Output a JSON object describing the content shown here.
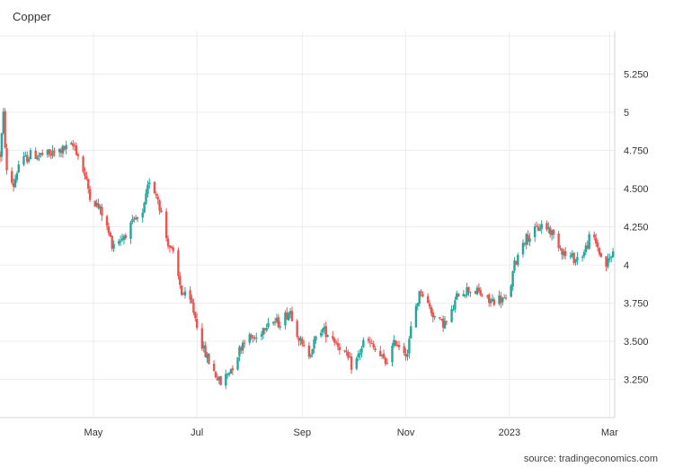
{
  "chart_data": {
    "type": "candlestick",
    "title": "Copper",
    "source": "source: tradingeconomics.com",
    "xlabel": "",
    "ylabel": "",
    "ylim": [
      3.0,
      5.5
    ],
    "y_ticks": [
      3.25,
      3.5,
      3.75,
      4,
      4.25,
      4.5,
      4.75,
      5,
      5.25
    ],
    "y_tick_labels": [
      "3.250",
      "3.500",
      "3.750",
      "4",
      "4.250",
      "4.500",
      "4.750",
      "5",
      "5.250"
    ],
    "x_start": "2022-03-07",
    "x_end": "2023-03-04",
    "x_ticks": [
      {
        "date": "2022-05-01",
        "label": "May"
      },
      {
        "date": "2022-07-01",
        "label": "Jul"
      },
      {
        "date": "2022-09-01",
        "label": "Sep"
      },
      {
        "date": "2022-11-01",
        "label": "Nov"
      },
      {
        "date": "2023-01-01",
        "label": "2023"
      },
      {
        "date": "2023-03-01",
        "label": "Mar"
      }
    ],
    "up_color": "#26a69a",
    "down_color": "#ef5350",
    "grid": true,
    "price_path": [
      [
        "2022-03-07",
        4.72
      ],
      [
        "2022-03-09",
        4.98
      ],
      [
        "2022-03-11",
        4.6
      ],
      [
        "2022-03-15",
        4.52
      ],
      [
        "2022-03-18",
        4.66
      ],
      [
        "2022-03-25",
        4.72
      ],
      [
        "2022-04-05",
        4.72
      ],
      [
        "2022-04-14",
        4.76
      ],
      [
        "2022-04-20",
        4.78
      ],
      [
        "2022-04-25",
        4.62
      ],
      [
        "2022-04-29",
        4.46
      ],
      [
        "2022-05-06",
        4.34
      ],
      [
        "2022-05-12",
        4.14
      ],
      [
        "2022-05-18",
        4.18
      ],
      [
        "2022-05-25",
        4.28
      ],
      [
        "2022-05-30",
        4.32
      ],
      [
        "2022-06-03",
        4.56
      ],
      [
        "2022-06-08",
        4.44
      ],
      [
        "2022-06-13",
        4.18
      ],
      [
        "2022-06-17",
        4.06
      ],
      [
        "2022-06-22",
        3.82
      ],
      [
        "2022-06-28",
        3.74
      ],
      [
        "2022-07-05",
        3.44
      ],
      [
        "2022-07-10",
        3.32
      ],
      [
        "2022-07-15",
        3.22
      ],
      [
        "2022-07-22",
        3.34
      ],
      [
        "2022-07-29",
        3.52
      ],
      [
        "2022-08-05",
        3.52
      ],
      [
        "2022-08-12",
        3.64
      ],
      [
        "2022-08-18",
        3.62
      ],
      [
        "2022-08-25",
        3.7
      ],
      [
        "2022-09-01",
        3.46
      ],
      [
        "2022-09-05",
        3.42
      ],
      [
        "2022-09-12",
        3.58
      ],
      [
        "2022-09-18",
        3.54
      ],
      [
        "2022-09-25",
        3.44
      ],
      [
        "2022-10-01",
        3.32
      ],
      [
        "2022-10-08",
        3.52
      ],
      [
        "2022-10-14",
        3.44
      ],
      [
        "2022-10-20",
        3.36
      ],
      [
        "2022-10-26",
        3.5
      ],
      [
        "2022-11-02",
        3.42
      ],
      [
        "2022-11-05",
        3.66
      ],
      [
        "2022-11-10",
        3.84
      ],
      [
        "2022-11-14",
        3.74
      ],
      [
        "2022-11-20",
        3.62
      ],
      [
        "2022-11-26",
        3.62
      ],
      [
        "2022-12-02",
        3.82
      ],
      [
        "2022-12-08",
        3.84
      ],
      [
        "2022-12-14",
        3.82
      ],
      [
        "2022-12-20",
        3.76
      ],
      [
        "2022-12-26",
        3.78
      ],
      [
        "2022-12-31",
        3.76
      ],
      [
        "2023-01-04",
        4.0
      ],
      [
        "2023-01-09",
        4.16
      ],
      [
        "2023-01-14",
        4.2
      ],
      [
        "2023-01-20",
        4.26
      ],
      [
        "2023-01-24",
        4.24
      ],
      [
        "2023-01-30",
        4.14
      ],
      [
        "2023-02-03",
        4.06
      ],
      [
        "2023-02-09",
        4.04
      ],
      [
        "2023-02-14",
        4.08
      ],
      [
        "2023-02-18",
        4.2
      ],
      [
        "2023-02-22",
        4.12
      ],
      [
        "2023-02-26",
        3.98
      ],
      [
        "2023-03-04",
        4.1
      ]
    ]
  }
}
